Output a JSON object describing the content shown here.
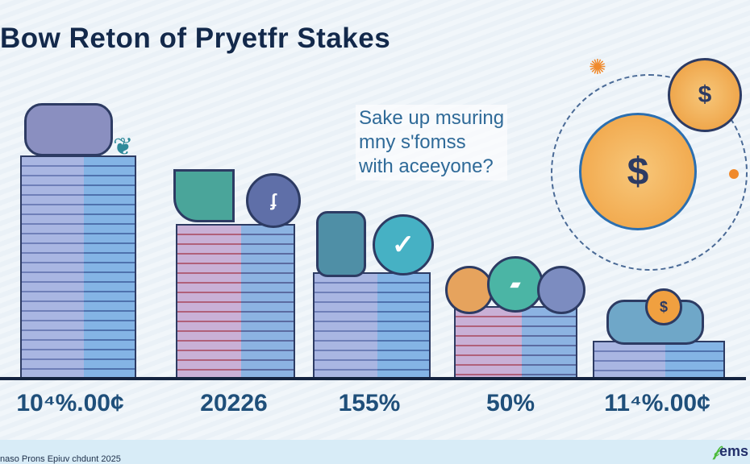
{
  "title": "Bow Reton of Pryetfr Stakes",
  "question": [
    "Sake up msuring",
    "mny s'fomss",
    "with aceeyone?"
  ],
  "stacks": [
    {
      "label": "10⁴%.00¢",
      "icon": "piggy-bank-icon"
    },
    {
      "label": "20226",
      "icon": "check-coin-icon"
    },
    {
      "label": "155%",
      "icon": "calculator-check-icon"
    },
    {
      "label": "50%",
      "icon": "coins-icon"
    },
    {
      "label": "11⁴%.00¢",
      "icon": "piggy-bank-coin-icon"
    }
  ],
  "coins": {
    "symbol": "$"
  },
  "footer": {
    "text": "naso Prons Epiuv chdunt 2025",
    "logo_mark": "𝒻",
    "logo_text": "ems"
  },
  "colors": {
    "title": "#13294b",
    "labels": "#1f4f7a",
    "accent_orange": "#f5a623",
    "logo_green": "#4cbb3b"
  }
}
